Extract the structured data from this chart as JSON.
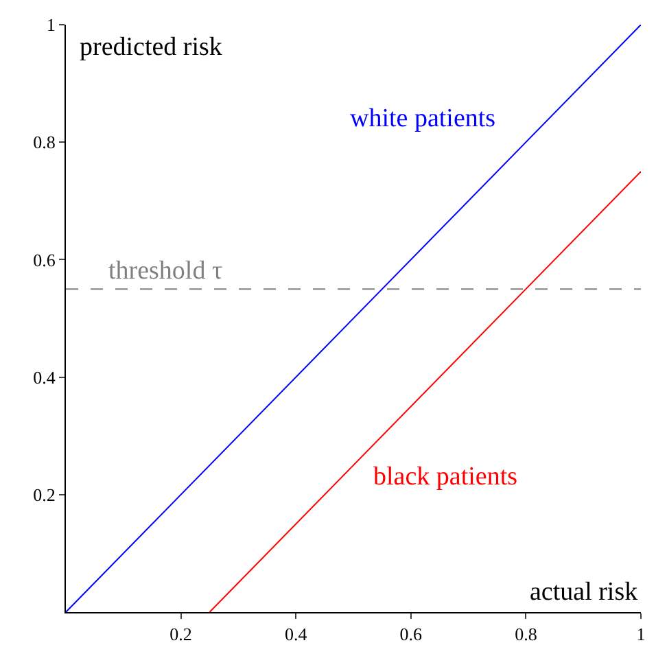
{
  "chart_data": {
    "type": "line",
    "xlabel": "actual risk",
    "ylabel": "predicted risk",
    "xlim": [
      0,
      1
    ],
    "ylim": [
      0,
      1
    ],
    "xticks": [
      0.2,
      0.4,
      0.6,
      0.8,
      1
    ],
    "yticks": [
      0.2,
      0.4,
      0.6,
      0.8,
      1
    ],
    "legend": false,
    "marker": "none",
    "line_style": "solid",
    "series": [
      {
        "name": "white patients",
        "color": "#0000ff",
        "x": [
          0,
          1
        ],
        "values": [
          0,
          1
        ]
      },
      {
        "name": "black patients",
        "color": "#ff0000",
        "x": [
          0.25,
          1
        ],
        "values": [
          0,
          0.75
        ]
      }
    ],
    "ref_lines": [
      {
        "axis": "y",
        "value": 0.55,
        "label": "threshold τ",
        "color": "#808080",
        "line_style": "dashed"
      }
    ]
  }
}
